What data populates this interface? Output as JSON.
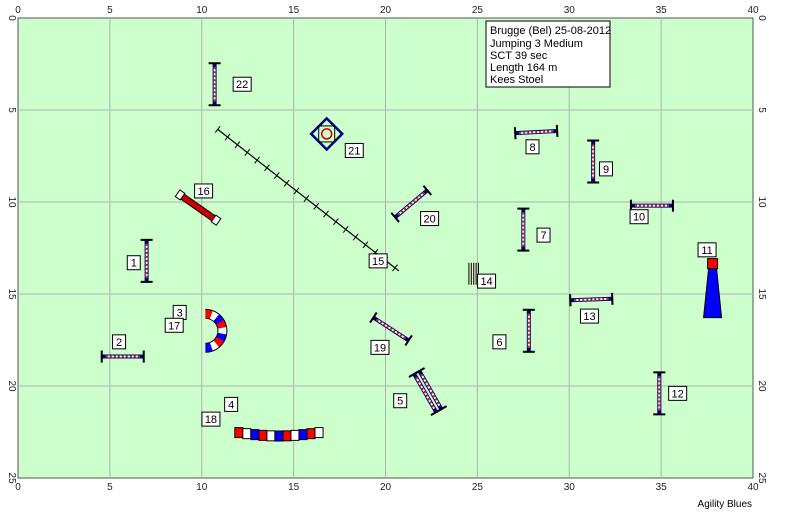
{
  "course": {
    "lines": [
      "Brugge (Bel) 25-08-2012",
      "Jumping 3 Medium",
      "SCT 39 sec",
      "Length 164 m",
      "Kees Stoel"
    ]
  },
  "axis": {
    "x_ticks": [
      "0",
      "5",
      "10",
      "15",
      "20",
      "25",
      "30",
      "35",
      "40"
    ],
    "y_ticks": [
      "0",
      "5",
      "10",
      "15",
      "20",
      "25"
    ]
  },
  "colors": {
    "field": "#ccffcc",
    "grid": "#b0b0b0",
    "pole": "#000080",
    "tunnel_red": "#ff0000",
    "tunnel_blue": "#0000ff"
  },
  "obstacles": [
    {
      "number": "1",
      "type": "jump",
      "x": 7.0,
      "y": 13.2,
      "angle": 90
    },
    {
      "number": "2",
      "type": "jump",
      "x": 5.7,
      "y": 18.4,
      "angle": 0
    },
    {
      "number": "3",
      "type": "tunnel-curve",
      "x": 10.0,
      "y": 17.0
    },
    {
      "number": "17",
      "type": "tunnel-curve",
      "x": 10.0,
      "y": 17.0
    },
    {
      "number": "4",
      "type": "tunnel-long",
      "x": 15.0,
      "y": 22.8
    },
    {
      "number": "18",
      "type": "tunnel-long",
      "x": 15.0,
      "y": 22.8
    },
    {
      "number": "5",
      "type": "double-jump",
      "x": 22.3,
      "y": 20.3,
      "angle": 60
    },
    {
      "number": "6",
      "type": "jump",
      "x": 27.8,
      "y": 17.0,
      "angle": 90
    },
    {
      "number": "7",
      "type": "jump",
      "x": 27.5,
      "y": 11.5,
      "angle": 90
    },
    {
      "number": "8",
      "type": "jump",
      "x": 28.2,
      "y": 6.2,
      "angle": -3
    },
    {
      "number": "9",
      "type": "jump",
      "x": 31.3,
      "y": 7.8,
      "angle": 90
    },
    {
      "number": "10",
      "type": "jump",
      "x": 34.5,
      "y": 10.2,
      "angle": 0
    },
    {
      "number": "11",
      "type": "chute",
      "x": 37.8,
      "y": 14.6
    },
    {
      "number": "12",
      "type": "jump",
      "x": 34.9,
      "y": 20.4,
      "angle": 90
    },
    {
      "number": "13",
      "type": "jump",
      "x": 31.2,
      "y": 15.3,
      "angle": -2
    },
    {
      "number": "14",
      "type": "weave",
      "x": 24.8,
      "y": 13.9
    },
    {
      "number": "15",
      "type": "walk",
      "x": 15.8,
      "y": 9.9,
      "angle": 38
    },
    {
      "number": "16",
      "type": "tire",
      "x": 9.8,
      "y": 10.3,
      "angle": 35
    },
    {
      "number": "19",
      "type": "jump",
      "x": 20.3,
      "y": 16.9,
      "angle": 33
    },
    {
      "number": "20",
      "type": "jump",
      "x": 21.4,
      "y": 10.1,
      "angle": -40
    },
    {
      "number": "21",
      "type": "table",
      "x": 16.8,
      "y": 6.3
    },
    {
      "number": "22",
      "type": "jump",
      "x": 10.7,
      "y": 3.6,
      "angle": 90
    }
  ],
  "labels": [
    {
      "text": "1",
      "x": 6.3,
      "y": 13.3
    },
    {
      "text": "2",
      "x": 5.5,
      "y": 17.6
    },
    {
      "text": "3",
      "x": 8.8,
      "y": 16.0
    },
    {
      "text": "17",
      "x": 8.5,
      "y": 16.7
    },
    {
      "text": "4",
      "x": 11.6,
      "y": 21.0
    },
    {
      "text": "18",
      "x": 10.5,
      "y": 21.8
    },
    {
      "text": "5",
      "x": 20.8,
      "y": 20.8
    },
    {
      "text": "6",
      "x": 26.2,
      "y": 17.6
    },
    {
      "text": "7",
      "x": 28.6,
      "y": 11.8
    },
    {
      "text": "8",
      "x": 28.0,
      "y": 7.0
    },
    {
      "text": "9",
      "x": 32.0,
      "y": 8.2
    },
    {
      "text": "10",
      "x": 33.8,
      "y": 10.8
    },
    {
      "text": "11",
      "x": 37.5,
      "y": 12.6
    },
    {
      "text": "12",
      "x": 35.9,
      "y": 20.4
    },
    {
      "text": "13",
      "x": 31.1,
      "y": 16.2
    },
    {
      "text": "14",
      "x": 25.5,
      "y": 14.3
    },
    {
      "text": "15",
      "x": 19.6,
      "y": 13.2
    },
    {
      "text": "16",
      "x": 10.1,
      "y": 9.4
    },
    {
      "text": "19",
      "x": 19.7,
      "y": 17.9
    },
    {
      "text": "20",
      "x": 22.4,
      "y": 10.9
    },
    {
      "text": "21",
      "x": 18.3,
      "y": 7.2
    },
    {
      "text": "22",
      "x": 12.2,
      "y": 3.6
    }
  ],
  "footer": "Agility Blues"
}
